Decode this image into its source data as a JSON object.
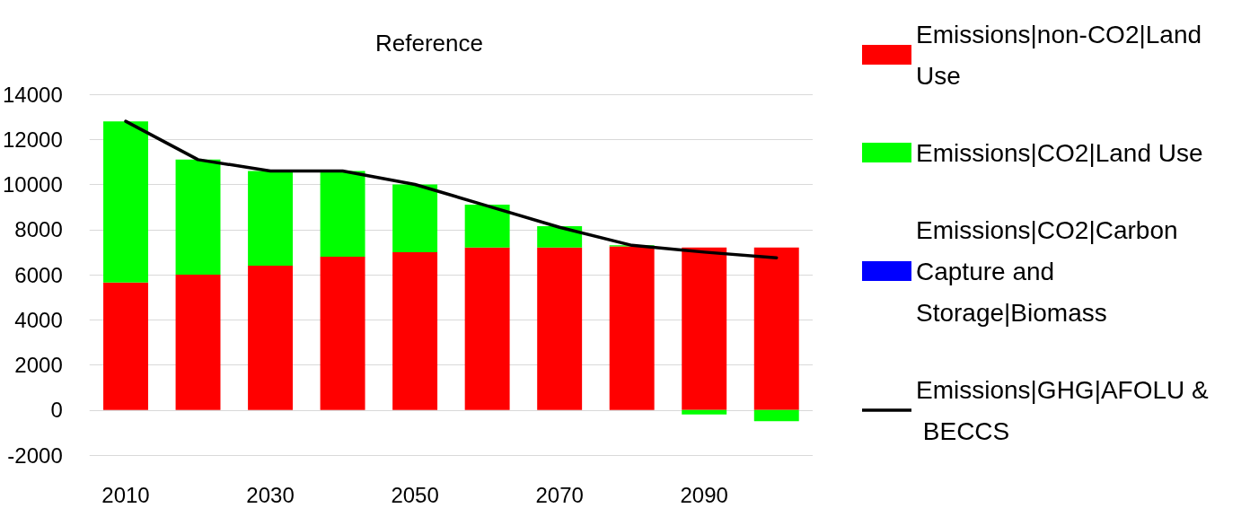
{
  "chart_data": {
    "type": "bar",
    "title": "Reference",
    "stacked": true,
    "categories": [
      "2010",
      null,
      "2030",
      null,
      "2050",
      null,
      "2070",
      null,
      "2090",
      null
    ],
    "series": [
      {
        "name": "Emissions|non-CO2|Land Use",
        "color": "#ff0000",
        "values": [
          5650,
          6000,
          6400,
          6800,
          7000,
          7200,
          7200,
          7250,
          7200,
          7200
        ]
      },
      {
        "name": "Emissions|CO2|Land Use",
        "color": "#00ff00",
        "values": [
          7150,
          5100,
          4200,
          3800,
          3000,
          1900,
          950,
          50,
          -200,
          -500
        ]
      },
      {
        "name": "Emissions|CO2|Carbon Capture and Storage|Biomass",
        "color": "#0000ff",
        "values": [
          0,
          0,
          0,
          0,
          0,
          0,
          0,
          0,
          0,
          0
        ]
      },
      {
        "name": "Emissions|GHG|AFOLU & BECCS",
        "color": "#000000",
        "type": "line",
        "values": [
          12800,
          11100,
          10600,
          10600,
          10000,
          9050,
          8100,
          7300,
          7000,
          6750
        ]
      }
    ],
    "ylim": [
      -2000,
      14000
    ],
    "yticks": [
      -2000,
      0,
      2000,
      4000,
      6000,
      8000,
      10000,
      12000,
      14000
    ],
    "grid": "y",
    "legend": "right",
    "marker": "none"
  }
}
